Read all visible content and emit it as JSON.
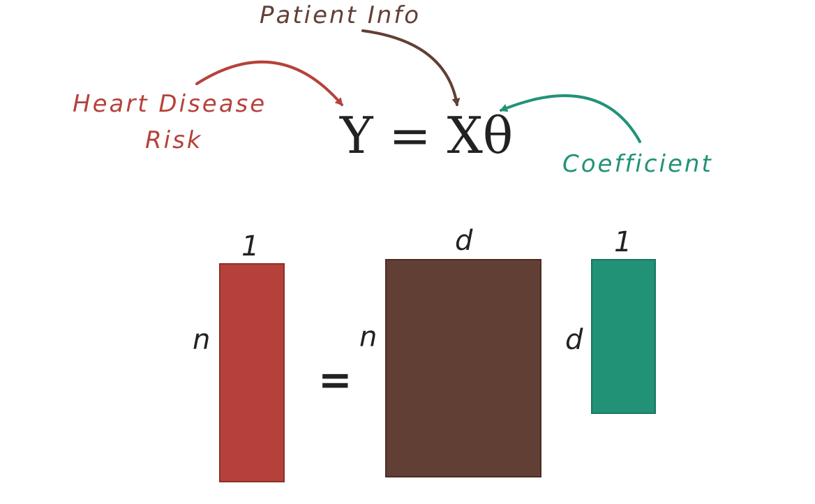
{
  "colors": {
    "y_color": "#b5423a",
    "x_color": "#623f34",
    "theta_color": "#229277",
    "text_dark": "#222222"
  },
  "annotations": {
    "patient_info": "Patient Info",
    "heart_disease_line1": "Heart Disease",
    "heart_disease_line2": "Risk",
    "coefficient": "Coefficient"
  },
  "equation": {
    "text": "Y = Xθ"
  },
  "matrices": {
    "y": {
      "cols_label": "1",
      "rows_label": "n"
    },
    "equals": "=",
    "x": {
      "cols_label": "d",
      "rows_label": "n"
    },
    "theta": {
      "cols_label": "1",
      "rows_label": "d"
    }
  }
}
